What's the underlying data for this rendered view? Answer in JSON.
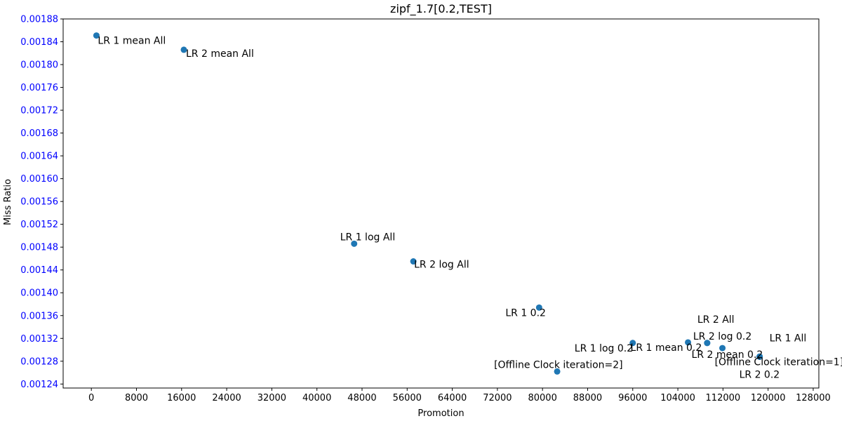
{
  "chart_data": {
    "type": "scatter",
    "title": "zipf_1.7[0.2,TEST]",
    "xlabel": "Promotion",
    "ylabel": "Miss Ratio",
    "xlim": [
      -5000,
      129000
    ],
    "ylim": [
      0.001233,
      0.00188
    ],
    "xticks": [
      0,
      8000,
      16000,
      24000,
      32000,
      40000,
      48000,
      56000,
      64000,
      72000,
      80000,
      88000,
      96000,
      104000,
      112000,
      120000,
      128000
    ],
    "xtick_labels": [
      "0",
      "8000",
      "16000",
      "24000",
      "32000",
      "40000",
      "48000",
      "56000",
      "64000",
      "72000",
      "80000",
      "88000",
      "96000",
      "104000",
      "112000",
      "120000",
      "128000"
    ],
    "yticks": [
      0.00124,
      0.00128,
      0.00132,
      0.00136,
      0.0014,
      0.00144,
      0.00148,
      0.00152,
      0.00156,
      0.0016,
      0.00164,
      0.00168,
      0.00172,
      0.00176,
      0.0018,
      0.00184,
      0.00188
    ],
    "ytick_labels": [
      "0.00124",
      "0.00128",
      "0.00132",
      "0.00136",
      "0.00140",
      "0.00144",
      "0.00148",
      "0.00152",
      "0.00156",
      "0.00160",
      "0.00164",
      "0.00168",
      "0.00172",
      "0.00176",
      "0.00180",
      "0.00184",
      "0.00188"
    ],
    "grid": false,
    "colors": {
      "points": "#1f77b4",
      "ytick_text": "#0000ff",
      "axis": "#000000"
    },
    "points": [
      {
        "label": "LR 1 mean All",
        "x": 900,
        "y": 0.001851
      },
      {
        "label": "LR 2 mean All",
        "x": 16400,
        "y": 0.001826
      },
      {
        "label": "LR 1 log All",
        "x": 46600,
        "y": 0.001486
      },
      {
        "label": "LR 2 log All",
        "x": 57100,
        "y": 0.001455
      },
      {
        "label": "LR 1 0.2",
        "x": 79400,
        "y": 0.001374
      },
      {
        "label": "LR 1 log 0.2",
        "x": 96000,
        "y": 0.001312
      },
      {
        "label": "LR 1 mean 0.2",
        "x": 105800,
        "y": 0.001313
      },
      {
        "label": "LR 2 All",
        "x": 109200,
        "y": 0.001312
      },
      {
        "label": "LR 2 log 0.2",
        "x": 109200,
        "y": 0.001312
      },
      {
        "label": "LR 2 mean 0.2",
        "x": 111900,
        "y": 0.001303
      },
      {
        "label": "LR 1 All",
        "x": 118500,
        "y": 0.001288
      },
      {
        "label": "[Offline Clock iteration=1]",
        "x": 118500,
        "y": 0.001288
      },
      {
        "label": "LR 2 0.2",
        "x": 118500,
        "y": 0.001288
      },
      {
        "label": "[Offline Clock iteration=2]",
        "x": 82600,
        "y": 0.001262
      }
    ]
  }
}
